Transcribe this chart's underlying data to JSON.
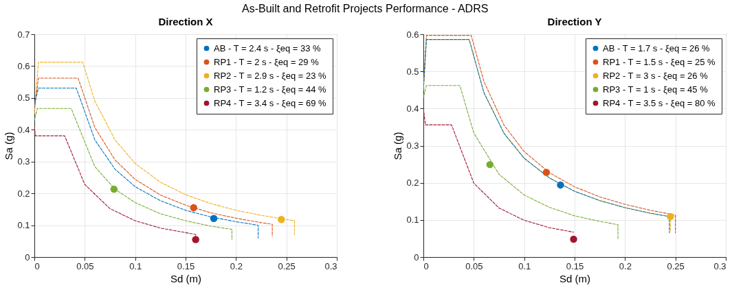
{
  "chart_data": [
    {
      "type": "line",
      "title": "Direction X",
      "xlabel": "Sd (m)",
      "ylabel": "Sa (g)",
      "annotations": [
        "As-Built and Retrofit Projects Performance - ADRS"
      ],
      "xlim": [
        0,
        0.3
      ],
      "ylim": [
        0,
        0.7
      ],
      "xticks": [
        0,
        0.05,
        0.1,
        0.15,
        0.2,
        0.25,
        0.3
      ],
      "yticks": [
        0,
        0.1,
        0.2,
        0.3,
        0.4,
        0.5,
        0.6,
        0.7
      ],
      "grid": true,
      "legend": "top right",
      "line_style": "dashed",
      "series": [
        {
          "color": "#edb120",
          "x": [
            0,
            0.004,
            0.048,
            0.06,
            0.08,
            0.1,
            0.125,
            0.15,
            0.175,
            0.2,
            0.225,
            0.256,
            0.258,
            0.258
          ],
          "values": [
            0.45,
            0.612,
            0.612,
            0.49,
            0.368,
            0.294,
            0.235,
            0.196,
            0.168,
            0.147,
            0.131,
            0.115,
            0.115,
            0.07
          ]
        },
        {
          "color": "#d95319",
          "x": [
            0,
            0.004,
            0.0434,
            0.06,
            0.08,
            0.1,
            0.125,
            0.15,
            0.175,
            0.2,
            0.225,
            0.236,
            0.236
          ],
          "values": [
            0.46,
            0.562,
            0.562,
            0.407,
            0.305,
            0.244,
            0.195,
            0.163,
            0.139,
            0.122,
            0.108,
            0.103,
            0.065
          ]
        },
        {
          "color": "#0072bd",
          "x": [
            0,
            0.004,
            0.0416,
            0.06,
            0.08,
            0.1,
            0.125,
            0.15,
            0.175,
            0.2,
            0.222,
            0.222
          ],
          "values": [
            0.48,
            0.531,
            0.531,
            0.368,
            0.276,
            0.221,
            0.177,
            0.147,
            0.126,
            0.111,
            0.1,
            0.06
          ]
        },
        {
          "color": "#77ac30",
          "x": [
            0,
            0.003,
            0.0365,
            0.06,
            0.08,
            0.1,
            0.125,
            0.15,
            0.175,
            0.196,
            0.196
          ],
          "values": [
            0.43,
            0.467,
            0.467,
            0.284,
            0.213,
            0.171,
            0.136,
            0.114,
            0.097,
            0.087,
            0.055
          ]
        },
        {
          "color": "#a2142f",
          "x": [
            0,
            0.001,
            0.03,
            0.05,
            0.075,
            0.1,
            0.125,
            0.16,
            0.16
          ],
          "values": [
            0.41,
            0.381,
            0.381,
            0.228,
            0.152,
            0.114,
            0.091,
            0.071,
            0.063
          ]
        },
        {
          "type": "scatter",
          "name": "AB - T = 2.4 s - ξeq = 33 %",
          "color": "#0072bd",
          "x": [
            0.178
          ],
          "values": [
            0.121
          ]
        },
        {
          "type": "scatter",
          "name": "RP1 - T = 2 s - ξeq = 29 %",
          "color": "#d95319",
          "x": [
            0.158
          ],
          "values": [
            0.155
          ]
        },
        {
          "type": "scatter",
          "name": "RP2 - T = 2.9 s - ξeq = 23 %",
          "color": "#edb120",
          "x": [
            0.245
          ],
          "values": [
            0.118
          ]
        },
        {
          "type": "scatter",
          "name": "RP3 - T = 1.2 s - ξeq = 44 %",
          "color": "#77ac30",
          "x": [
            0.079
          ],
          "values": [
            0.213
          ]
        },
        {
          "type": "scatter",
          "name": "RP4 - T = 3.4 s - ξeq = 69 %",
          "color": "#a2142f",
          "x": [
            0.16
          ],
          "values": [
            0.055
          ]
        }
      ]
    },
    {
      "type": "line",
      "title": "Direction Y",
      "xlabel": "Sd (m)",
      "ylabel": "Sa (g)",
      "xlim": [
        0,
        0.3
      ],
      "ylim": [
        0,
        0.6
      ],
      "xticks": [
        0,
        0.05,
        0.1,
        0.15,
        0.2,
        0.25,
        0.3
      ],
      "yticks": [
        0,
        0.1,
        0.2,
        0.3,
        0.4,
        0.5,
        0.6
      ],
      "grid": true,
      "legend": "top right",
      "line_style": "dashed",
      "series": [
        {
          "color": "#d95319",
          "x": [
            0,
            0.003,
            0.0474,
            0.06,
            0.08,
            0.1,
            0.125,
            0.15,
            0.175,
            0.2,
            0.225,
            0.25,
            0.25
          ],
          "values": [
            0.45,
            0.597,
            0.597,
            0.473,
            0.355,
            0.284,
            0.227,
            0.189,
            0.162,
            0.142,
            0.126,
            0.113,
            0.065
          ]
        },
        {
          "color": "#edb120",
          "x": [
            0,
            0.003,
            0.0454,
            0.06,
            0.08,
            0.1,
            0.125,
            0.15,
            0.175,
            0.2,
            0.225,
            0.245,
            0.245
          ],
          "values": [
            0.45,
            0.586,
            0.586,
            0.443,
            0.333,
            0.266,
            0.213,
            0.177,
            0.152,
            0.133,
            0.118,
            0.109,
            0.07
          ]
        },
        {
          "color": "#0072bd",
          "x": [
            0,
            0.003,
            0.0454,
            0.06,
            0.08,
            0.1,
            0.125,
            0.15,
            0.175,
            0.2,
            0.225,
            0.244,
            0.244
          ],
          "values": [
            0.45,
            0.586,
            0.586,
            0.443,
            0.333,
            0.266,
            0.213,
            0.177,
            0.152,
            0.133,
            0.118,
            0.109,
            0.065
          ]
        },
        {
          "color": "#77ac30",
          "x": [
            0,
            0.003,
            0.0362,
            0.05,
            0.075,
            0.1,
            0.125,
            0.15,
            0.175,
            0.193,
            0.193
          ],
          "values": [
            0.43,
            0.462,
            0.462,
            0.334,
            0.223,
            0.167,
            0.134,
            0.111,
            0.096,
            0.087,
            0.05
          ]
        },
        {
          "color": "#a2142f",
          "x": [
            0,
            0.002,
            0.0279,
            0.05,
            0.075,
            0.1,
            0.125,
            0.149
          ],
          "values": [
            0.4,
            0.356,
            0.356,
            0.199,
            0.132,
            0.099,
            0.079,
            0.067
          ]
        },
        {
          "type": "scatter",
          "name": "AB - T = 1.7 s - ξeq = 26 %",
          "color": "#0072bd",
          "x": [
            0.136
          ],
          "values": [
            0.194
          ]
        },
        {
          "type": "scatter",
          "name": "RP1 - T = 1.5 s - ξeq = 25 %",
          "color": "#d95319",
          "x": [
            0.122
          ],
          "values": [
            0.228
          ]
        },
        {
          "type": "scatter",
          "name": "RP2 - T = 3 s - ξeq = 26 %",
          "color": "#edb120",
          "x": [
            0.245
          ],
          "values": [
            0.109
          ]
        },
        {
          "type": "scatter",
          "name": "RP3 - T = 1 s - ξeq = 45 %",
          "color": "#77ac30",
          "x": [
            0.066
          ],
          "values": [
            0.249
          ]
        },
        {
          "type": "scatter",
          "name": "RP4 - T = 3.5 s - ξeq = 80 %",
          "color": "#a2142f",
          "x": [
            0.149
          ],
          "values": [
            0.048
          ]
        }
      ]
    }
  ]
}
